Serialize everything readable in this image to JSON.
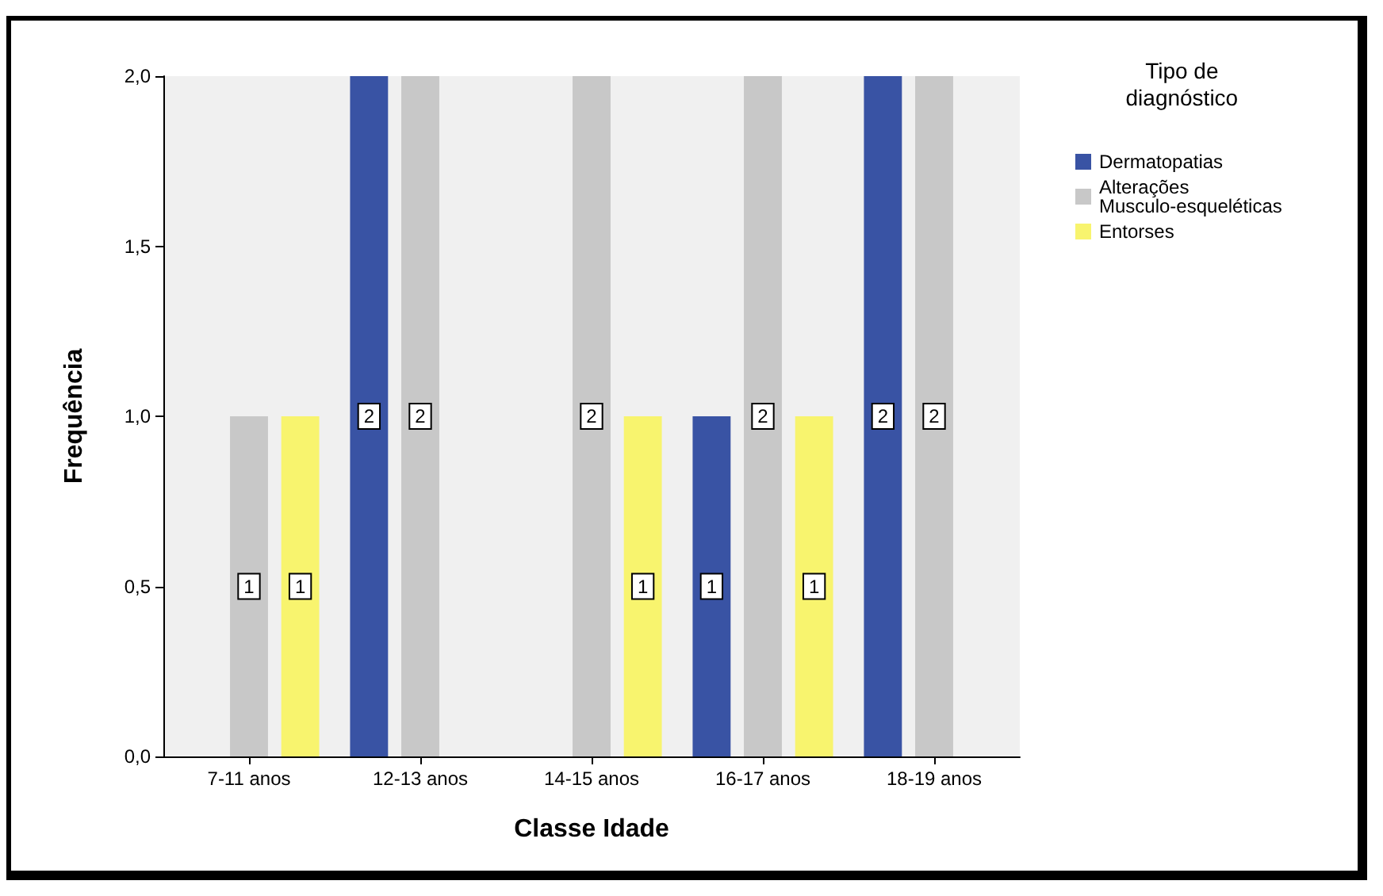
{
  "chart_data": {
    "type": "bar",
    "xlabel": "Classe Idade",
    "ylabel": "Frequência",
    "legend_title": "Tipo de diagnóstico",
    "categories": [
      "7-11 anos",
      "12-13 anos",
      "14-15 anos",
      "16-17 anos",
      "18-19 anos"
    ],
    "series": [
      {
        "name": "Dermatopatias",
        "color": "#3953a4",
        "values": [
          null,
          2,
          null,
          1,
          2
        ]
      },
      {
        "name": "Alterações Musculo-esqueléticas",
        "color": "#c8c8c8",
        "values": [
          1,
          2,
          2,
          2,
          2
        ]
      },
      {
        "name": "Entorses",
        "color": "#f8f46e",
        "values": [
          1,
          null,
          1,
          1,
          null
        ]
      }
    ],
    "ylim": [
      0,
      2
    ],
    "yticks": [
      {
        "value": 0,
        "label": "0,0"
      },
      {
        "value": 0.5,
        "label": "0,5"
      },
      {
        "value": 1,
        "label": "1,0"
      },
      {
        "value": 1.5,
        "label": "1,5"
      },
      {
        "value": 2,
        "label": "2,0"
      }
    ],
    "data_labels": true,
    "legend": "right",
    "grid": false
  }
}
